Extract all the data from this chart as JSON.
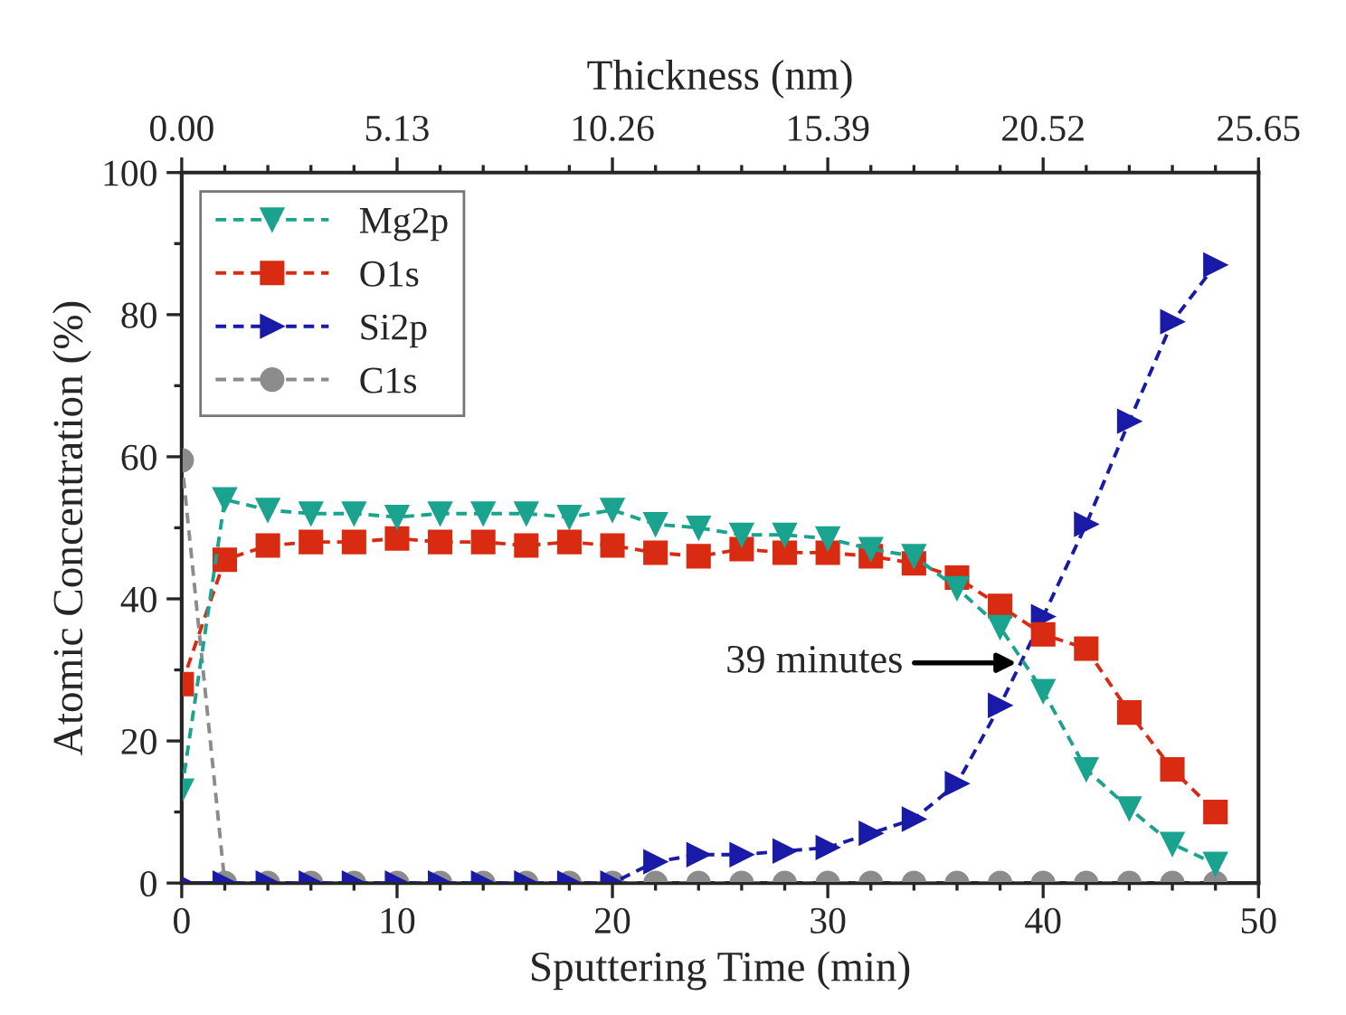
{
  "chart_data": {
    "type": "line",
    "xlabel": "Sputtering Time (min)",
    "ylabel": "Atomic Concentration (%)",
    "x2label": "Thickness (nm)",
    "x": [
      0,
      2,
      4,
      6,
      8,
      10,
      12,
      14,
      16,
      18,
      20,
      22,
      24,
      26,
      28,
      30,
      32,
      34,
      36,
      38,
      40,
      42,
      44,
      46,
      48
    ],
    "series": [
      {
        "name": "Mg2p",
        "color": "#1aa38f",
        "marker": "triangle",
        "values": [
          13,
          54,
          52.5,
          52,
          52,
          51.5,
          52,
          52,
          52,
          51.5,
          52.5,
          50.5,
          50,
          49,
          49,
          48.5,
          47,
          46,
          41.5,
          36,
          27,
          16,
          10.5,
          5.5,
          2.7
        ]
      },
      {
        "name": "O1s",
        "color": "#d92b12",
        "marker": "square",
        "values": [
          28,
          45.5,
          47.5,
          48,
          48,
          48.5,
          48,
          48,
          47.5,
          48,
          47.5,
          46.5,
          46,
          47,
          46.5,
          46.5,
          46,
          45,
          43,
          39,
          35,
          33,
          24,
          16,
          10
        ]
      },
      {
        "name": "Si2p",
        "color": "#1a1aa8",
        "marker": "triangle_right",
        "values": [
          0,
          0,
          0,
          0,
          0,
          0,
          0,
          0,
          0,
          0,
          0,
          3,
          4,
          4,
          4.5,
          5,
          7,
          9,
          14,
          25,
          37.5,
          50.5,
          65,
          79,
          87
        ]
      },
      {
        "name": "C1s",
        "color": "#8c8c8c",
        "marker": "circle",
        "values": [
          59.5,
          0,
          0,
          0,
          0,
          0,
          0,
          0,
          0,
          0,
          0,
          0,
          0,
          0,
          0,
          0,
          0,
          0,
          0,
          0,
          0,
          0,
          0,
          0,
          0
        ]
      }
    ],
    "xlim": [
      0,
      50
    ],
    "xticks": [
      0,
      10,
      20,
      30,
      40,
      50
    ],
    "ylim": [
      0,
      100
    ],
    "yticks": [
      0,
      20,
      40,
      60,
      80,
      100
    ],
    "x2lim": [
      0,
      25.65
    ],
    "x2ticks": [
      {
        "value": 0,
        "label": "0.00"
      },
      {
        "value": 5.13,
        "label": "5.13"
      },
      {
        "value": 10.26,
        "label": "10.26"
      },
      {
        "value": 15.39,
        "label": "15.39"
      },
      {
        "value": 20.52,
        "label": "20.52"
      },
      {
        "value": 25.65,
        "label": "25.65"
      }
    ],
    "annotations": [
      {
        "text": "39 minutes",
        "x": 39,
        "y": 31
      }
    ],
    "legend": "top left",
    "grid": false,
    "line_style": "dashed"
  }
}
